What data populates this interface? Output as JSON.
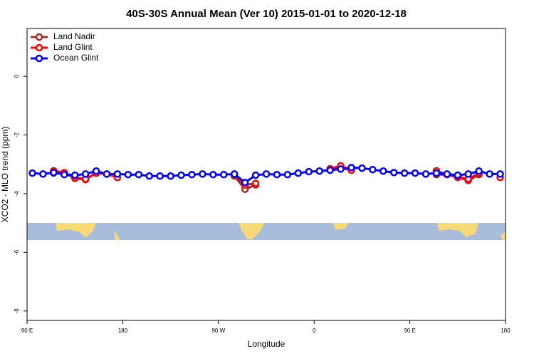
{
  "chart_data": {
    "type": "line",
    "title": "40S-30S Annual Mean (Ver 10)   2015-01-01 to 2020-12-18",
    "xlabel": "Longitude",
    "ylabel": "XCO2 - MLO trend (ppm)",
    "x": [
      95,
      105,
      115,
      125,
      135,
      145,
      155,
      165,
      175,
      185,
      195,
      205,
      215,
      225,
      235,
      245,
      255,
      265,
      275,
      285,
      295,
      305,
      315,
      325,
      335,
      345,
      355,
      365,
      375,
      385,
      395,
      405,
      415,
      425,
      435,
      445,
      455,
      465,
      475,
      485,
      495,
      505,
      515,
      525,
      535
    ],
    "series": [
      {
        "name": "Land Nadir",
        "color": "#a52a2a",
        "values": [
          null,
          null,
          -3.3,
          -3.3,
          -3.48,
          -3.52,
          -3.3,
          null,
          null,
          null,
          null,
          null,
          null,
          null,
          null,
          null,
          null,
          null,
          null,
          -3.4,
          -3.85,
          -3.7,
          null,
          null,
          null,
          null,
          null,
          null,
          -3.18,
          -3.12,
          -3.2,
          null,
          null,
          null,
          null,
          null,
          null,
          null,
          -3.35,
          -3.35,
          -3.45,
          -3.55,
          -3.35,
          null,
          null
        ]
      },
      {
        "name": "Land Glint",
        "color": "#ff0000",
        "values": [
          null,
          null,
          -3.22,
          -3.28,
          -3.45,
          -3.5,
          -3.3,
          -3.33,
          -3.45,
          null,
          null,
          null,
          null,
          null,
          null,
          null,
          null,
          null,
          null,
          -3.35,
          -3.7,
          -3.65,
          null,
          null,
          null,
          null,
          null,
          null,
          -3.15,
          -3.05,
          -3.2,
          null,
          null,
          null,
          null,
          null,
          null,
          null,
          -3.22,
          -3.35,
          -3.42,
          -3.5,
          -3.3,
          null,
          -3.45
        ]
      },
      {
        "name": "Ocean Glint",
        "color": "#0000ff",
        "values": [
          -3.3,
          -3.33,
          -3.28,
          -3.35,
          -3.37,
          -3.33,
          -3.23,
          -3.33,
          -3.33,
          -3.35,
          -3.35,
          -3.4,
          -3.4,
          -3.4,
          -3.37,
          -3.35,
          -3.33,
          -3.35,
          -3.35,
          -3.33,
          -3.62,
          -3.37,
          -3.33,
          -3.35,
          -3.35,
          -3.3,
          -3.25,
          -3.23,
          -3.2,
          -3.16,
          -3.11,
          -3.13,
          -3.18,
          -3.23,
          -3.28,
          -3.3,
          -3.3,
          -3.33,
          -3.3,
          -3.33,
          -3.37,
          -3.33,
          -3.23,
          -3.33,
          -3.33
        ]
      }
    ],
    "xlim": [
      90,
      540
    ],
    "xticks": [
      {
        "value": 90,
        "label": "90 E"
      },
      180,
      {
        "value": 270,
        "label": "90 W"
      },
      {
        "value": 360,
        "label": "0"
      },
      {
        "value": 450,
        "label": "90 E"
      },
      {
        "value": 540,
        "label": "180"
      }
    ],
    "ylim": [
      -8.32,
      1.63
    ],
    "yticks": [
      0,
      -2,
      -4,
      -6,
      -8
    ],
    "legend": "top-left"
  }
}
